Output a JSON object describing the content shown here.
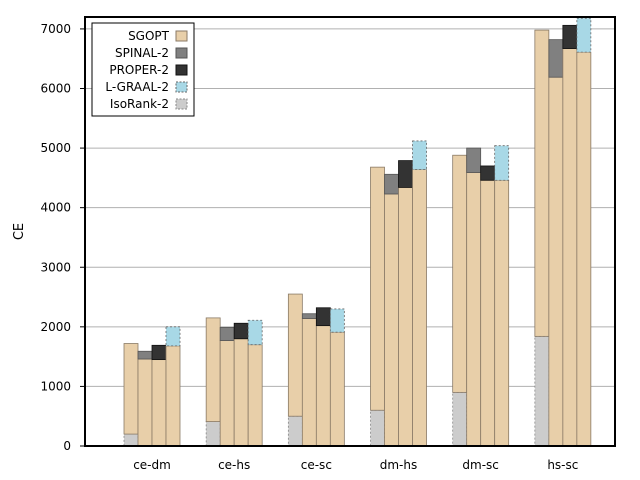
{
  "chart_data": {
    "type": "bar",
    "subtype": "stacked-grouped",
    "ylabel": "CE",
    "xlabel": "",
    "ylim": [
      0,
      7200
    ],
    "yticks": [
      0,
      1000,
      2000,
      3000,
      4000,
      5000,
      6000,
      7000
    ],
    "grid": "horizontal",
    "legend_position": "top-left",
    "categories": [
      "ce-dm",
      "ce-hs",
      "ce-sc",
      "dm-hs",
      "dm-sc",
      "hs-sc"
    ],
    "series": [
      {
        "name": "SGOPT",
        "color": "#e8cfa9",
        "stroke": "#8a7a66",
        "dashed": false,
        "cap": [
          0,
          0,
          0,
          0,
          0,
          0
        ]
      },
      {
        "name": "SPINAL-2",
        "color": "#808080",
        "stroke": "#555555",
        "dashed": false,
        "base": [
          1460,
          1770,
          2140,
          4230,
          4590,
          6190
        ],
        "cap": [
          1590,
          1990,
          2220,
          4560,
          5000,
          6820
        ]
      },
      {
        "name": "PROPER-2",
        "color": "#333333",
        "stroke": "#111111",
        "dashed": false,
        "base": [
          1450,
          1800,
          2020,
          4340,
          4460,
          6670
        ],
        "cap": [
          1690,
          2060,
          2320,
          4790,
          4700,
          7060
        ]
      },
      {
        "name": "L-GRAAL-2",
        "color": "#a8d8e6",
        "stroke": "#666666",
        "dashed": true,
        "base": [
          1680,
          1700,
          1910,
          4640,
          4460,
          6610
        ],
        "cap": [
          2000,
          2110,
          2300,
          5120,
          5040,
          7180
        ]
      },
      {
        "name": "IsoRank-2",
        "color": "#cccccc",
        "stroke": "#888888",
        "dashed": true,
        "base": [
          200,
          410,
          500,
          600,
          900,
          1840
        ],
        "cap": [
          1720,
          2150,
          2550,
          4680,
          4880,
          6980
        ]
      }
    ]
  }
}
